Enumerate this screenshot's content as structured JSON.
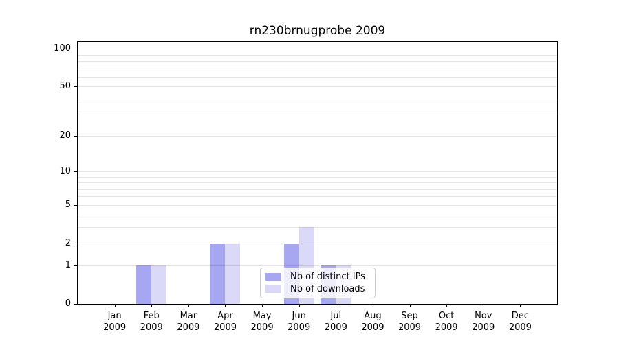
{
  "title": "rn230brnugprobe 2009",
  "chart_data": {
    "type": "bar",
    "title": "rn230brnugprobe 2009",
    "categories": [
      "Jan",
      "Feb",
      "Mar",
      "Apr",
      "May",
      "Jun",
      "Jul",
      "Aug",
      "Sep",
      "Oct",
      "Nov",
      "Dec"
    ],
    "year_label": "2009",
    "series": [
      {
        "name": "Nb of distinct IPs",
        "color": "#a6a6f1",
        "values": [
          0,
          1,
          0,
          2,
          0,
          2,
          1,
          0,
          0,
          0,
          0,
          0
        ]
      },
      {
        "name": "Nb of downloads",
        "color": "#dadaf8",
        "values": [
          0,
          1,
          0,
          2,
          0,
          3,
          1,
          0,
          0,
          0,
          0,
          0
        ]
      }
    ],
    "xlabel": "",
    "ylabel": "",
    "y_scale": "log1p",
    "ylim": [
      0,
      114
    ],
    "y_ticks": [
      100,
      50,
      20,
      10,
      5,
      2,
      1,
      0
    ],
    "grid_values": [
      1,
      2,
      3,
      4,
      5,
      6,
      7,
      8,
      9,
      10,
      20,
      30,
      40,
      50,
      60,
      70,
      80,
      90,
      100
    ],
    "grid": "horizontal",
    "legend_position": "inside-bottom-center"
  },
  "colors": {
    "axis": "#000000",
    "gridline": "rgba(0,0,0,0.10)",
    "legend_border": "#cccccc",
    "legend_background": "rgba(255,255,255,0.8)",
    "background": "#ffffff"
  }
}
